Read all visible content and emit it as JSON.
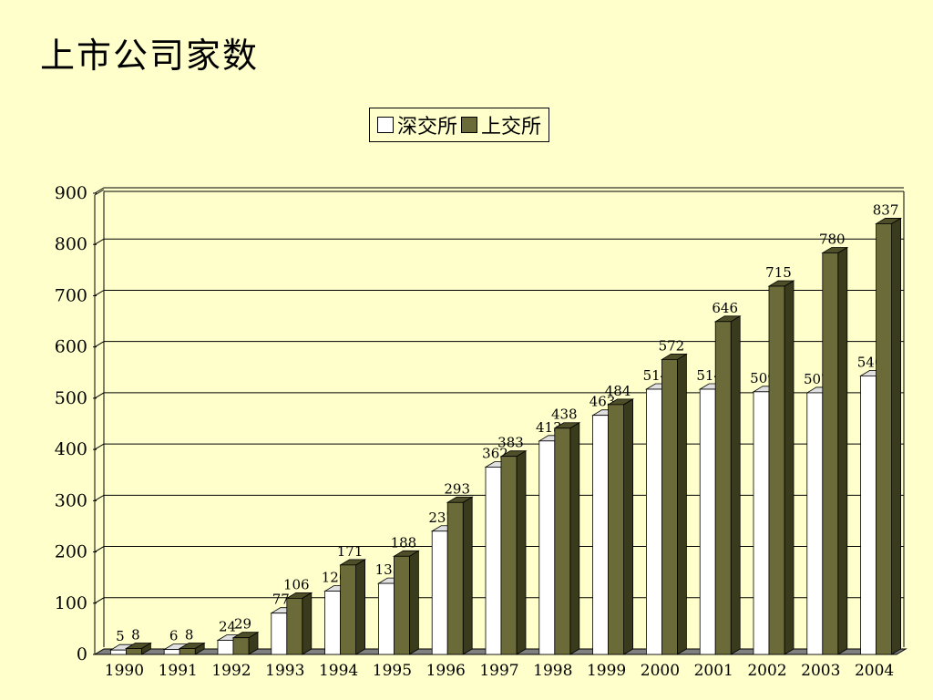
{
  "title": "上市公司家数",
  "colors": {
    "background": "#ffffcc",
    "sz_front": "#ffffff",
    "sz_side": "#c8c8c8",
    "sz_top": "#e0e0e0",
    "sh_front": "#6b6b3a",
    "sh_side": "#3a3a1c",
    "sh_top": "#4e4e28",
    "floor": "#808080"
  },
  "chart_data": {
    "type": "bar",
    "title": "上市公司家数",
    "xlabel": "",
    "ylabel": "",
    "ylim": [
      0,
      900
    ],
    "yticks": [
      0,
      100,
      200,
      300,
      400,
      500,
      600,
      700,
      800,
      900
    ],
    "grid": true,
    "legend_position": "top-center",
    "categories": [
      "1990",
      "1991",
      "1992",
      "1993",
      "1994",
      "1995",
      "1996",
      "1997",
      "1998",
      "1999",
      "2000",
      "2001",
      "2002",
      "2003",
      "2004"
    ],
    "series": [
      {
        "name": "深交所",
        "values": [
          5,
          6,
          24,
          77,
          120,
          135,
          237,
          362,
          413,
          463,
          514,
          514,
          509,
          507,
          540
        ]
      },
      {
        "name": "上交所",
        "values": [
          8,
          8,
          29,
          106,
          171,
          188,
          293,
          383,
          438,
          484,
          572,
          646,
          715,
          780,
          837
        ]
      }
    ]
  }
}
